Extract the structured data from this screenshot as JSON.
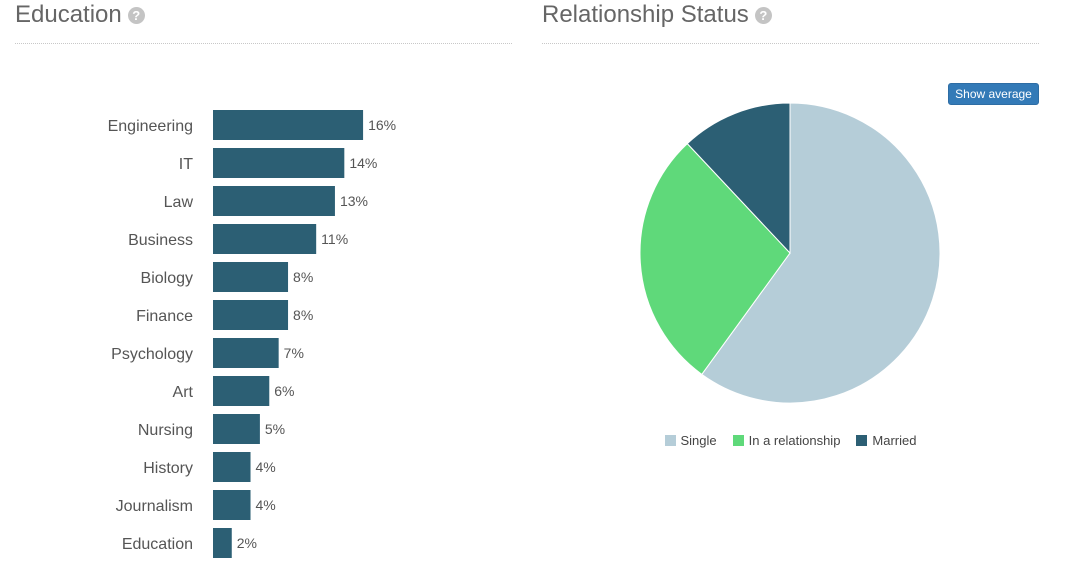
{
  "education": {
    "title": "Education",
    "help_icon": "question-circle-icon"
  },
  "relationship": {
    "title": "Relationship Status",
    "help_icon": "question-circle-icon",
    "show_average_label": "Show average"
  },
  "chart_data": [
    {
      "type": "bar",
      "orientation": "horizontal",
      "title": "Education",
      "categories": [
        "Engineering",
        "IT",
        "Law",
        "Business",
        "Biology",
        "Finance",
        "Psychology",
        "Art",
        "Nursing",
        "History",
        "Journalism",
        "Education"
      ],
      "values": [
        16,
        14,
        13,
        11,
        8,
        8,
        7,
        6,
        5,
        4,
        4,
        2
      ],
      "value_labels": [
        "16%",
        "14%",
        "13%",
        "11%",
        "8%",
        "8%",
        "7%",
        "6%",
        "5%",
        "4%",
        "4%",
        "2%"
      ],
      "color": "#2c5f74",
      "xlabel": "",
      "ylabel": "",
      "grid": false
    },
    {
      "type": "pie",
      "title": "Relationship Status",
      "labels": [
        "Single",
        "In a relationship",
        "Married"
      ],
      "values": [
        60,
        28,
        12
      ],
      "colors": [
        "#b5cdd8",
        "#5fd97a",
        "#2c5f74"
      ],
      "legend": "bottom"
    }
  ]
}
